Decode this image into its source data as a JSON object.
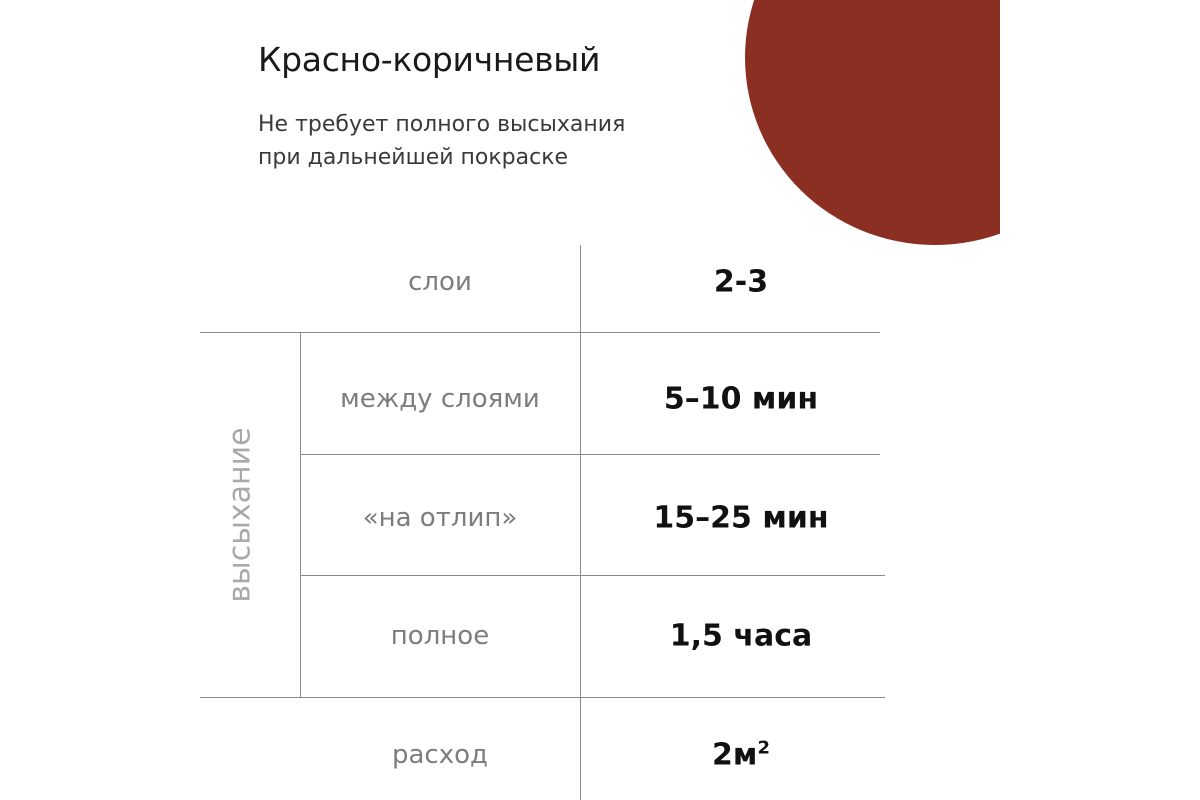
{
  "product": {
    "title": "Красно-коричневый",
    "subtitle_lines": [
      "Не требует полного высыхания",
      "при дальнейшей покраске"
    ],
    "swatch_color": "#8b2f22"
  },
  "table": {
    "group_label": "высыхание",
    "rows": [
      {
        "label": "слои",
        "value": "2-3"
      },
      {
        "label": "между слоями",
        "value": "5–10 мин"
      },
      {
        "label": "«на отлип»",
        "value": "15–25 мин"
      },
      {
        "label": "полное",
        "value": "1,5 часа"
      },
      {
        "label": "расход",
        "value": "2м",
        "value_sup": "2"
      }
    ]
  }
}
